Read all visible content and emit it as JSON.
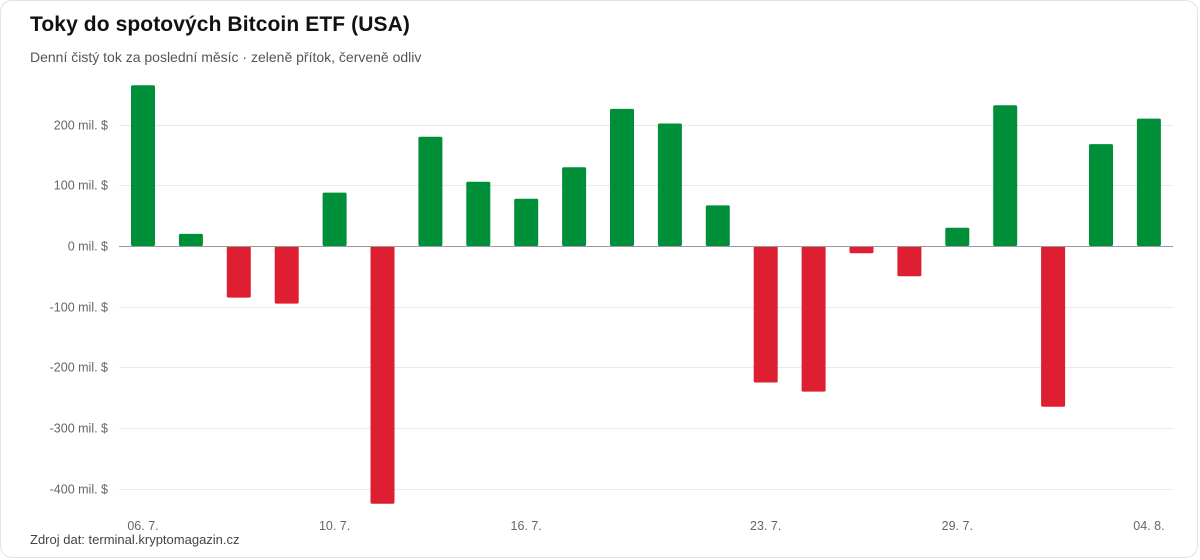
{
  "chart_data": {
    "type": "bar",
    "title": "Toky do spotových Bitcoin ETF (USA)",
    "subtitle": "Denní čistý tok za poslední měsíc · zeleně přítok, červeně odliv",
    "source": "Zdroj dat: terminal.kryptomagazin.cz",
    "xlabel": "",
    "ylabel": "",
    "ylim": [
      -420,
      265
    ],
    "yticks": [
      -400,
      -300,
      -200,
      -100,
      0,
      100,
      200
    ],
    "ytick_labels": [
      "-400 mil. $",
      "-300 mil. $",
      "-200 mil. $",
      "-100 mil. $",
      "0 mil. $",
      "100 mil. $",
      "200 mil. $"
    ],
    "xtick_labels": [
      {
        "index": 0,
        "label": "06. 7."
      },
      {
        "index": 4,
        "label": "10. 7."
      },
      {
        "index": 8,
        "label": "16. 7."
      },
      {
        "index": 13,
        "label": "23. 7."
      },
      {
        "index": 17,
        "label": "29. 7."
      },
      {
        "index": 21,
        "label": "04. 8."
      }
    ],
    "grid": true,
    "colors": {
      "inflow": "#008f39",
      "outflow": "#de1f31"
    },
    "values": [
      265,
      20,
      -85,
      -95,
      88,
      -425,
      180,
      106,
      78,
      130,
      226,
      202,
      67,
      -225,
      -240,
      -12,
      -50,
      30,
      232,
      -265,
      168,
      210
    ]
  }
}
